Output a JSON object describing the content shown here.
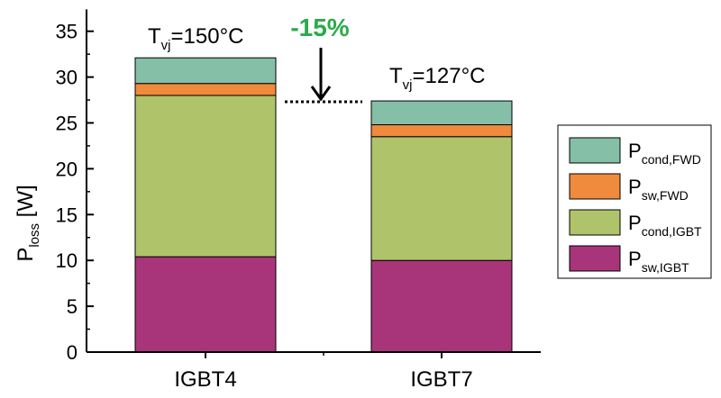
{
  "chart_data": {
    "type": "bar",
    "stacked": true,
    "categories": [
      "IGBT4",
      "IGBT7"
    ],
    "series": [
      {
        "name": "P_sw,IGBT",
        "base": "P",
        "sub": "sw,IGBT",
        "color": "#a8357a",
        "values": [
          10.4,
          10.0
        ]
      },
      {
        "name": "P_cond,IGBT",
        "base": "P",
        "sub": "cond,IGBT",
        "color": "#afc46a",
        "values": [
          17.6,
          13.5
        ]
      },
      {
        "name": "P_sw,FWD",
        "base": "P",
        "sub": "sw,FWD",
        "color": "#f08a3c",
        "values": [
          1.3,
          1.3
        ]
      },
      {
        "name": "P_cond,FWD",
        "base": "P",
        "sub": "cond,FWD",
        "color": "#85bfa8",
        "values": [
          2.8,
          2.6
        ]
      }
    ],
    "ylim": [
      0,
      37
    ],
    "yticks": [
      0,
      5,
      10,
      15,
      20,
      25,
      30,
      35
    ],
    "ylabel": {
      "base": "P",
      "sub": "loss",
      "suffix": " [W]"
    },
    "xlabel": "",
    "legend_position": "right",
    "annotations": {
      "igbt4_temp": {
        "base": "T",
        "sub": "vj",
        "value": "=150°C"
      },
      "igbt7_temp": {
        "base": "T",
        "sub": "vj",
        "value": "=127°C"
      },
      "reduction": {
        "text": "-15%",
        "color": "#2aab4a"
      }
    }
  }
}
